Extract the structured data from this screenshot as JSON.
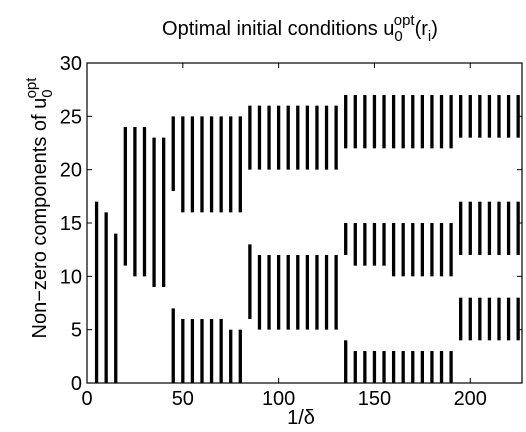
{
  "chart_data": {
    "type": "bar",
    "subtype": "vertical-range-segments",
    "title": {
      "prefix": "Optimal initial conditions u",
      "sub": "0",
      "sup": "opt",
      "suffix_open": "(r",
      "suffix_sub": "i",
      "suffix_close": ")"
    },
    "xlabel": "1/δ",
    "ylabel": {
      "prefix": "Non−zero components of u",
      "sub": "0",
      "sup": "opt"
    },
    "xlim": [
      0,
      227
    ],
    "ylim": [
      0,
      30
    ],
    "xticks": [
      0,
      50,
      100,
      150,
      200
    ],
    "yticks": [
      0,
      5,
      10,
      15,
      20,
      25,
      30
    ],
    "grid": false,
    "segments": [
      {
        "x": 5,
        "y": [
          0,
          17
        ]
      },
      {
        "x": 10,
        "y": [
          0,
          16
        ]
      },
      {
        "x": 15,
        "y": [
          0,
          14
        ]
      },
      {
        "x": 20,
        "y": [
          11,
          24
        ]
      },
      {
        "x": 25,
        "y": [
          10,
          24
        ]
      },
      {
        "x": 30,
        "y": [
          10,
          24
        ]
      },
      {
        "x": 35,
        "y": [
          9,
          23
        ]
      },
      {
        "x": 40,
        "y": [
          9,
          23
        ]
      },
      {
        "x": 45,
        "y": [
          0,
          7
        ]
      },
      {
        "x": 45,
        "y": [
          18,
          25
        ]
      },
      {
        "x": 50,
        "y": [
          0,
          6
        ]
      },
      {
        "x": 50,
        "y": [
          16,
          25
        ]
      },
      {
        "x": 55,
        "y": [
          0,
          6
        ]
      },
      {
        "x": 55,
        "y": [
          16,
          25
        ]
      },
      {
        "x": 60,
        "y": [
          0,
          6
        ]
      },
      {
        "x": 60,
        "y": [
          16,
          25
        ]
      },
      {
        "x": 65,
        "y": [
          0,
          6
        ]
      },
      {
        "x": 65,
        "y": [
          16,
          25
        ]
      },
      {
        "x": 70,
        "y": [
          0,
          6
        ]
      },
      {
        "x": 70,
        "y": [
          16,
          25
        ]
      },
      {
        "x": 75,
        "y": [
          0,
          5
        ]
      },
      {
        "x": 75,
        "y": [
          16,
          25
        ]
      },
      {
        "x": 80,
        "y": [
          0,
          5
        ]
      },
      {
        "x": 80,
        "y": [
          16,
          25
        ]
      },
      {
        "x": 85,
        "y": [
          6,
          13
        ]
      },
      {
        "x": 85,
        "y": [
          20,
          26
        ]
      },
      {
        "x": 90,
        "y": [
          5,
          12
        ]
      },
      {
        "x": 90,
        "y": [
          20,
          26
        ]
      },
      {
        "x": 95,
        "y": [
          5,
          12
        ]
      },
      {
        "x": 95,
        "y": [
          20,
          26
        ]
      },
      {
        "x": 100,
        "y": [
          5,
          12
        ]
      },
      {
        "x": 100,
        "y": [
          20,
          26
        ]
      },
      {
        "x": 105,
        "y": [
          5,
          12
        ]
      },
      {
        "x": 105,
        "y": [
          20,
          26
        ]
      },
      {
        "x": 110,
        "y": [
          5,
          12
        ]
      },
      {
        "x": 110,
        "y": [
          20,
          26
        ]
      },
      {
        "x": 115,
        "y": [
          5,
          12
        ]
      },
      {
        "x": 115,
        "y": [
          20,
          26
        ]
      },
      {
        "x": 120,
        "y": [
          5,
          12
        ]
      },
      {
        "x": 120,
        "y": [
          20,
          26
        ]
      },
      {
        "x": 125,
        "y": [
          5,
          12
        ]
      },
      {
        "x": 125,
        "y": [
          20,
          26
        ]
      },
      {
        "x": 130,
        "y": [
          5,
          12
        ]
      },
      {
        "x": 130,
        "y": [
          20,
          26
        ]
      },
      {
        "x": 135,
        "y": [
          0,
          4
        ]
      },
      {
        "x": 135,
        "y": [
          12,
          15
        ]
      },
      {
        "x": 135,
        "y": [
          22,
          27
        ]
      },
      {
        "x": 140,
        "y": [
          0,
          3
        ]
      },
      {
        "x": 140,
        "y": [
          11,
          15
        ]
      },
      {
        "x": 140,
        "y": [
          22,
          27
        ]
      },
      {
        "x": 145,
        "y": [
          0,
          3
        ]
      },
      {
        "x": 145,
        "y": [
          11,
          15
        ]
      },
      {
        "x": 145,
        "y": [
          22,
          27
        ]
      },
      {
        "x": 150,
        "y": [
          0,
          3
        ]
      },
      {
        "x": 150,
        "y": [
          11,
          15
        ]
      },
      {
        "x": 150,
        "y": [
          22,
          27
        ]
      },
      {
        "x": 155,
        "y": [
          0,
          3
        ]
      },
      {
        "x": 155,
        "y": [
          11,
          15
        ]
      },
      {
        "x": 155,
        "y": [
          22,
          27
        ]
      },
      {
        "x": 160,
        "y": [
          0,
          3
        ]
      },
      {
        "x": 160,
        "y": [
          10,
          15
        ]
      },
      {
        "x": 160,
        "y": [
          22,
          27
        ]
      },
      {
        "x": 165,
        "y": [
          0,
          3
        ]
      },
      {
        "x": 165,
        "y": [
          10,
          15
        ]
      },
      {
        "x": 165,
        "y": [
          22,
          27
        ]
      },
      {
        "x": 170,
        "y": [
          0,
          3
        ]
      },
      {
        "x": 170,
        "y": [
          10,
          15
        ]
      },
      {
        "x": 170,
        "y": [
          22,
          27
        ]
      },
      {
        "x": 175,
        "y": [
          0,
          3
        ]
      },
      {
        "x": 175,
        "y": [
          10,
          15
        ]
      },
      {
        "x": 175,
        "y": [
          22,
          27
        ]
      },
      {
        "x": 180,
        "y": [
          0,
          3
        ]
      },
      {
        "x": 180,
        "y": [
          10,
          15
        ]
      },
      {
        "x": 180,
        "y": [
          22,
          27
        ]
      },
      {
        "x": 185,
        "y": [
          0,
          3
        ]
      },
      {
        "x": 185,
        "y": [
          10,
          15
        ]
      },
      {
        "x": 185,
        "y": [
          22,
          27
        ]
      },
      {
        "x": 190,
        "y": [
          0,
          3
        ]
      },
      {
        "x": 190,
        "y": [
          10,
          15
        ]
      },
      {
        "x": 190,
        "y": [
          22,
          27
        ]
      },
      {
        "x": 195,
        "y": [
          4,
          8
        ]
      },
      {
        "x": 195,
        "y": [
          12,
          17
        ]
      },
      {
        "x": 195,
        "y": [
          23,
          27
        ]
      },
      {
        "x": 200,
        "y": [
          4,
          8
        ]
      },
      {
        "x": 200,
        "y": [
          12,
          17
        ]
      },
      {
        "x": 200,
        "y": [
          23,
          27
        ]
      },
      {
        "x": 205,
        "y": [
          4,
          8
        ]
      },
      {
        "x": 205,
        "y": [
          12,
          17
        ]
      },
      {
        "x": 205,
        "y": [
          23,
          27
        ]
      },
      {
        "x": 210,
        "y": [
          4,
          8
        ]
      },
      {
        "x": 210,
        "y": [
          12,
          17
        ]
      },
      {
        "x": 210,
        "y": [
          23,
          27
        ]
      },
      {
        "x": 215,
        "y": [
          4,
          8
        ]
      },
      {
        "x": 215,
        "y": [
          12,
          17
        ]
      },
      {
        "x": 215,
        "y": [
          23,
          27
        ]
      },
      {
        "x": 220,
        "y": [
          4,
          8
        ]
      },
      {
        "x": 220,
        "y": [
          12,
          17
        ]
      },
      {
        "x": 220,
        "y": [
          23,
          27
        ]
      },
      {
        "x": 225,
        "y": [
          4,
          8
        ]
      },
      {
        "x": 225,
        "y": [
          12,
          17
        ]
      },
      {
        "x": 225,
        "y": [
          23,
          27
        ]
      }
    ],
    "colors": {
      "segment": "#000000",
      "axes": "#000000",
      "background": "#ffffff"
    }
  }
}
